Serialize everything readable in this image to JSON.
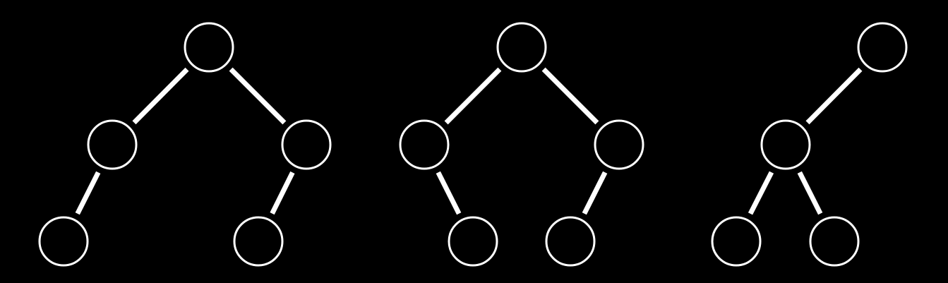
{
  "diagram": {
    "type": "binary-trees",
    "colors": {
      "background": "#000000",
      "stroke": "#ffffff"
    },
    "trees": [
      {
        "name": "tree-1",
        "nodes": [
          "root",
          "left",
          "right",
          "left-left",
          "right-left"
        ],
        "edges": [
          [
            "root",
            "left"
          ],
          [
            "root",
            "right"
          ],
          [
            "left",
            "left-left"
          ],
          [
            "right",
            "right-left"
          ]
        ]
      },
      {
        "name": "tree-2",
        "nodes": [
          "root",
          "left",
          "right",
          "left-right",
          "right-left"
        ],
        "edges": [
          [
            "root",
            "left"
          ],
          [
            "root",
            "right"
          ],
          [
            "left",
            "left-right"
          ],
          [
            "right",
            "right-left"
          ]
        ]
      },
      {
        "name": "tree-3",
        "nodes": [
          "root",
          "left",
          "left-left",
          "left-right"
        ],
        "edges": [
          [
            "root",
            "left"
          ],
          [
            "left",
            "left-left"
          ],
          [
            "left",
            "left-right"
          ]
        ]
      }
    ]
  }
}
